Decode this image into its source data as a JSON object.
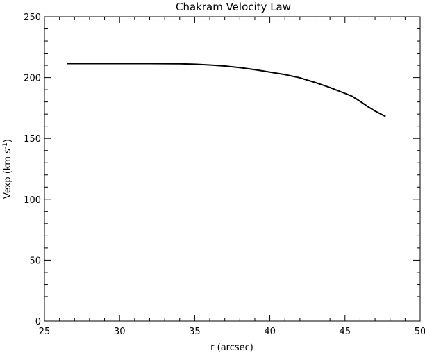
{
  "chart_data": {
    "type": "line",
    "title": "Chakram Velocity Law",
    "xlabel": "r (arcsec)",
    "ylabel_main": "Vexp (km s",
    "ylabel_sup": "-1",
    "ylabel_close": ")",
    "xlim": [
      25,
      50
    ],
    "ylim": [
      0,
      250
    ],
    "xticks": [
      25,
      30,
      35,
      40,
      45,
      50
    ],
    "xtick_labels": [
      "25",
      "30",
      "35",
      "40",
      "45",
      "50"
    ],
    "yticks": [
      0,
      50,
      100,
      150,
      200,
      250
    ],
    "ytick_labels": [
      "0",
      "50",
      "100",
      "150",
      "200",
      "250"
    ],
    "grid": false,
    "series": [
      {
        "x": [
          26.5,
          28,
          30,
          32,
          34,
          35,
          36,
          37,
          38,
          39,
          40,
          41,
          42,
          43,
          44,
          45,
          45.5,
          46,
          46.5,
          47,
          47.7
        ],
        "y": [
          211.5,
          211.5,
          211.5,
          211.5,
          211.3,
          211,
          210.3,
          209.5,
          208.2,
          206.5,
          204.5,
          202.5,
          199.8,
          196,
          191.8,
          187,
          184.5,
          180.5,
          176.3,
          172.5,
          168
        ]
      }
    ]
  }
}
